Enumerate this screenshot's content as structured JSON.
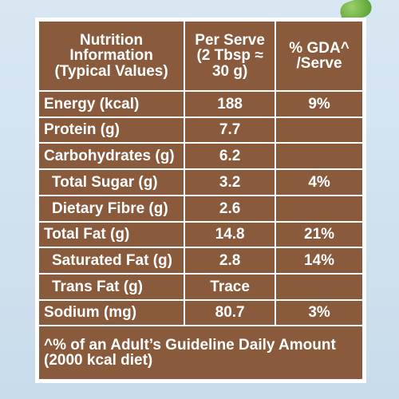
{
  "header": {
    "col1": [
      "Nutrition",
      "Information",
      "(Typical Values)"
    ],
    "col2": [
      "Per Serve",
      "(2 Tbsp ≈",
      "30 g)"
    ],
    "col3": [
      "% GDA^",
      "/Serve"
    ]
  },
  "rows": [
    {
      "name": "Energy (kcal)",
      "value": "188",
      "gda": "9%"
    },
    {
      "name": "Protein (g)",
      "value": "7.7",
      "gda": ""
    },
    {
      "name": "Carbohydrates (g)",
      "value": "6.2",
      "gda": ""
    },
    {
      "name": "Total Sugar (g)",
      "value": "3.2",
      "gda": "4%"
    },
    {
      "name": "Dietary Fibre (g)",
      "value": "2.6",
      "gda": ""
    },
    {
      "name": "Total Fat (g)",
      "value": "14.8",
      "gda": "21%"
    },
    {
      "name": "Saturated Fat (g)",
      "value": "2.8",
      "gda": "14%"
    },
    {
      "name": "Trans Fat (g)",
      "value": "Trace",
      "gda": ""
    },
    {
      "name": "Sodium (mg)",
      "value": "80.7",
      "gda": "3%"
    }
  ],
  "footnote": [
    "^% of an Adult’s Guideline Daily Amount",
    "(2000 kcal diet)"
  ],
  "colors": {
    "panel": "#8a5a3d",
    "text": "#ffffff",
    "background": "#d9e7f3"
  }
}
